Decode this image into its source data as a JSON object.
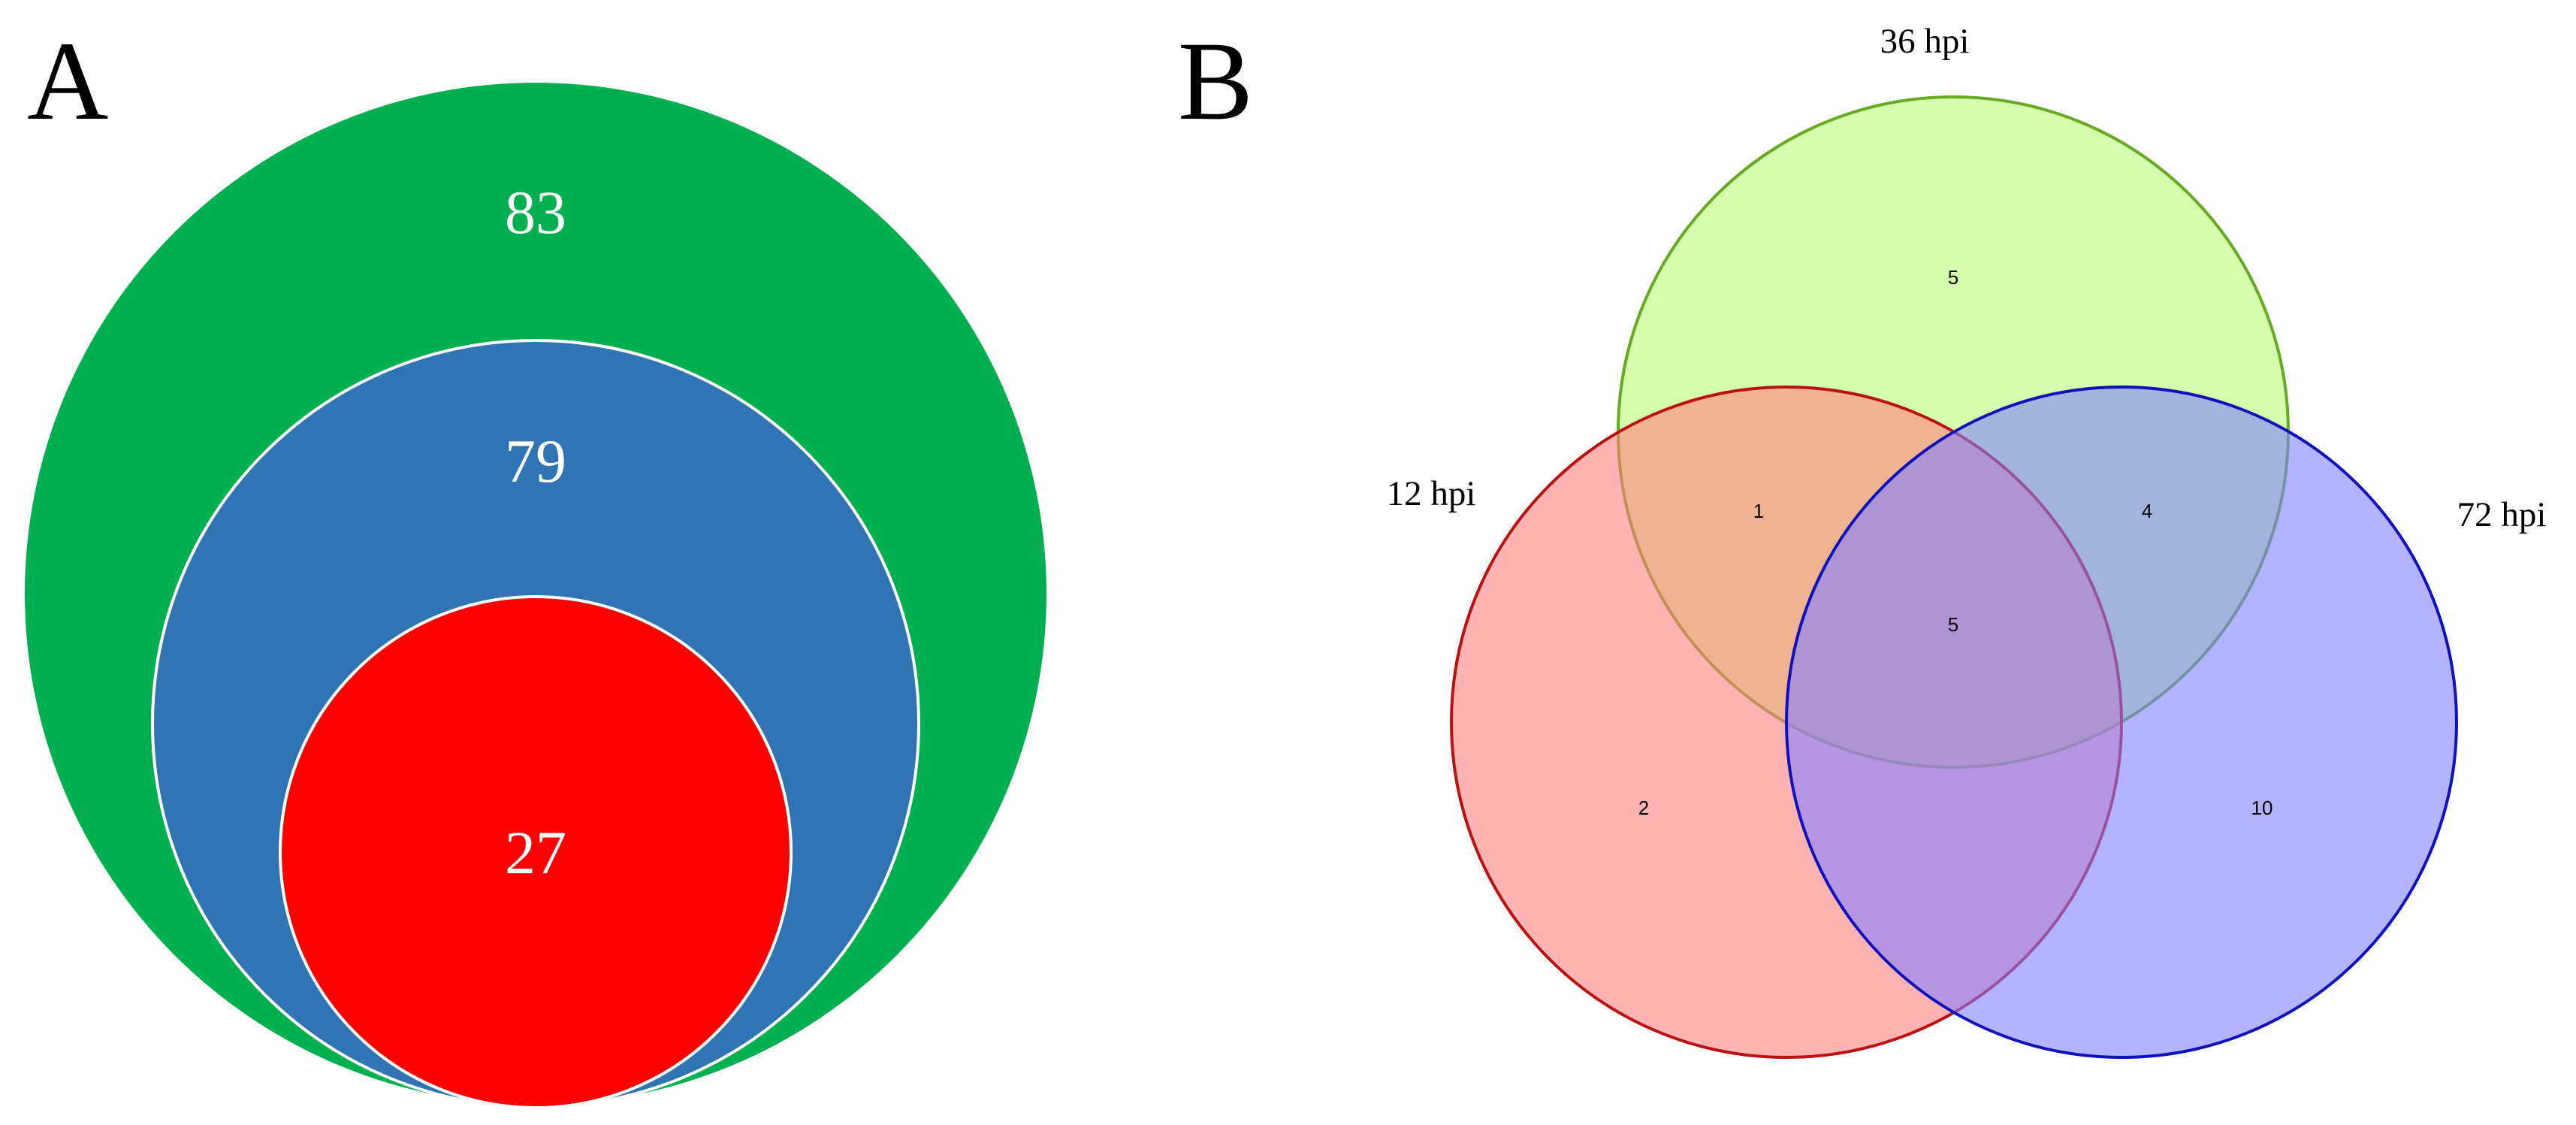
{
  "panels": {
    "a": {
      "letter": "A"
    },
    "b": {
      "letter": "B"
    }
  },
  "nested_venn": {
    "sets": [
      {
        "value": "83",
        "color": "#00AF50"
      },
      {
        "value": "79",
        "color": "#3174B4"
      },
      {
        "value": "27",
        "color": "#FF0000"
      }
    ]
  },
  "venn3": {
    "sets": [
      {
        "label": "36 hpi",
        "fill": "#CCFF99",
        "stroke": "#66AA22"
      },
      {
        "label": "12 hpi",
        "fill": "#FF8080",
        "stroke": "#BB1111"
      },
      {
        "label": "72 hpi",
        "fill": "#8080FF",
        "stroke": "#1111BB"
      }
    ],
    "regions": {
      "only_36": "5",
      "only_12": "2",
      "only_72": "10",
      "12_and_36": "1",
      "36_and_72": "4",
      "all_three": "5"
    }
  }
}
